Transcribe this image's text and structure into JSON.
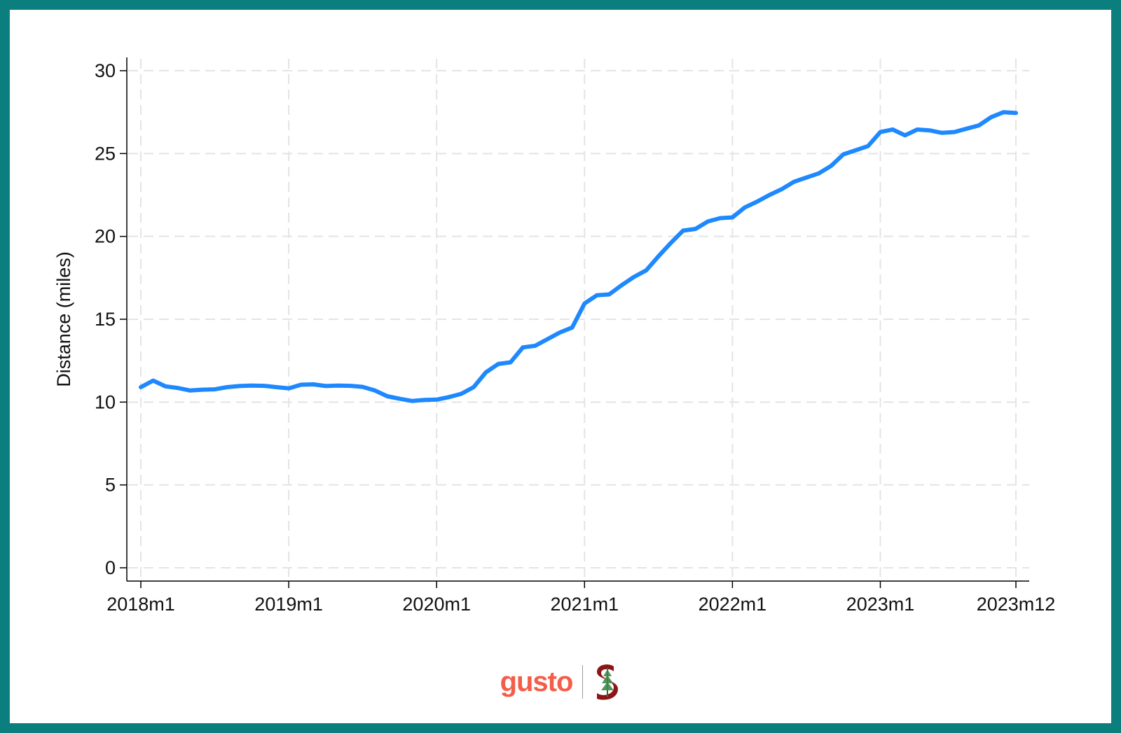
{
  "colors": {
    "border": "#0b7f7d",
    "line": "#1e88ff",
    "grid": "#e4e4e4",
    "gusto": "#f45d48",
    "stanford": "#8c1515"
  },
  "logos": {
    "gusto_text": "gusto",
    "stanford_icon": "stanford-s-tree-icon"
  },
  "chart_data": {
    "type": "line",
    "title": "",
    "xlabel": "",
    "ylabel": "Distance (miles)",
    "ylim": [
      0,
      30
    ],
    "yticks": [
      0,
      5,
      10,
      15,
      20,
      25,
      30
    ],
    "xticks": [
      "2018m1",
      "2019m1",
      "2020m1",
      "2021m1",
      "2022m1",
      "2023m1",
      "2023m12"
    ],
    "grid": true,
    "x_start": "2018m1",
    "x_end": "2023m12",
    "series": [
      {
        "values": [
          10.9,
          11.3,
          10.95,
          10.85,
          10.7,
          10.75,
          10.77,
          10.9,
          10.97,
          11.0,
          10.98,
          10.9,
          10.83,
          11.05,
          11.07,
          10.97,
          11.0,
          10.98,
          10.92,
          10.7,
          10.35,
          10.2,
          10.07,
          10.13,
          10.15,
          10.3,
          10.5,
          10.9,
          11.8,
          12.3,
          12.4,
          13.3,
          13.4,
          13.8,
          14.2,
          14.5,
          15.95,
          16.45,
          16.5,
          17.05,
          17.55,
          17.95,
          18.8,
          19.6,
          20.35,
          20.45,
          20.9,
          21.1,
          21.15,
          21.75,
          22.1,
          22.5,
          22.85,
          23.3,
          23.55,
          23.8,
          24.25,
          24.95,
          25.2,
          25.45,
          26.3,
          26.45,
          26.1,
          26.45,
          26.4,
          26.25,
          26.3,
          26.5,
          26.7,
          27.2,
          27.5,
          27.45
        ]
      }
    ]
  }
}
